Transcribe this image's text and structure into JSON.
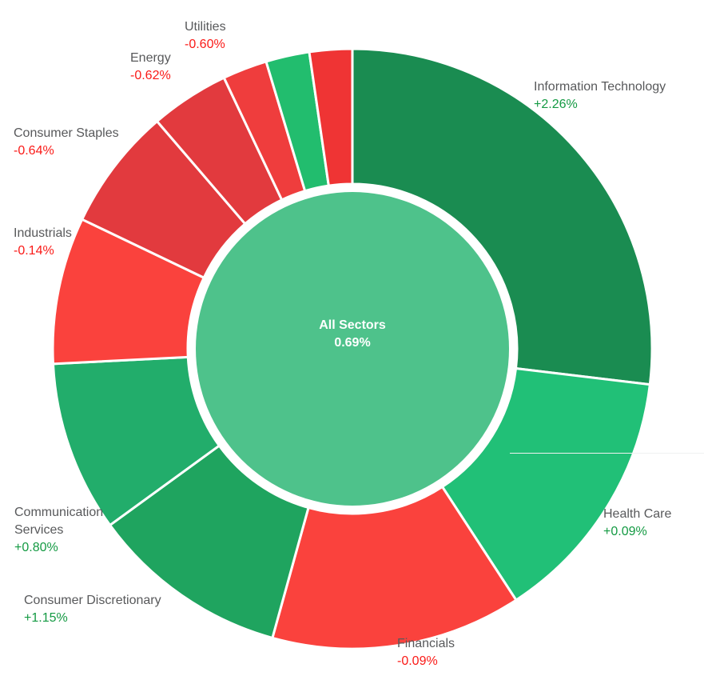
{
  "chart_data": {
    "type": "donut",
    "title": "",
    "background": "#ffffff",
    "label_color": "#58595b",
    "positive_color": "#149a43",
    "negative_color": "#fa1a17",
    "center": {
      "label": "All Sectors",
      "value": "0.69%",
      "color": "#4ec28b",
      "text_color": "#ffffff"
    },
    "segments": [
      {
        "label": "Information Technology",
        "change": "+2.26%",
        "weight_pct": 26.9,
        "color": "#1a8c51",
        "change_color": "#149a43"
      },
      {
        "label": "Health Care",
        "change": "+0.09%",
        "weight_pct": 13.9,
        "color": "#21c077",
        "change_color": "#149a43"
      },
      {
        "label": "Financials",
        "change": "-0.09%",
        "weight_pct": 13.5,
        "color": "#fa423d",
        "change_color": "#fa1a17"
      },
      {
        "label": "Consumer Discretionary",
        "change": "+1.15%",
        "weight_pct": 10.7,
        "color": "#1fa45f",
        "change_color": "#149a43"
      },
      {
        "label": "Communication Services",
        "change": "+0.80%",
        "weight_pct": 9.2,
        "color": "#22ad6b",
        "change_color": "#149a43"
      },
      {
        "label": "Industrials",
        "change": "-0.14%",
        "weight_pct": 7.9,
        "color": "#fa423d",
        "change_color": "#fa1a17"
      },
      {
        "label": "Consumer Staples",
        "change": "-0.64%",
        "weight_pct": 6.6,
        "color": "#e23a3e",
        "change_color": "#fa1a17"
      },
      {
        "label": "Energy",
        "change": "-0.62%",
        "weight_pct": 4.25,
        "color": "#e23a3e",
        "change_color": "#fa1a17"
      },
      {
        "label": "",
        "change": "",
        "weight_pct": 2.4,
        "color": "#ef3d3d",
        "change_color": ""
      },
      {
        "label": "",
        "change": "",
        "weight_pct": 2.35,
        "color": "#22bd6e",
        "change_color": ""
      },
      {
        "label": "Utilities",
        "change": "-0.60%",
        "weight_pct": 2.3,
        "color": "#ef3434",
        "change_color": "#fa1a17"
      }
    ]
  }
}
